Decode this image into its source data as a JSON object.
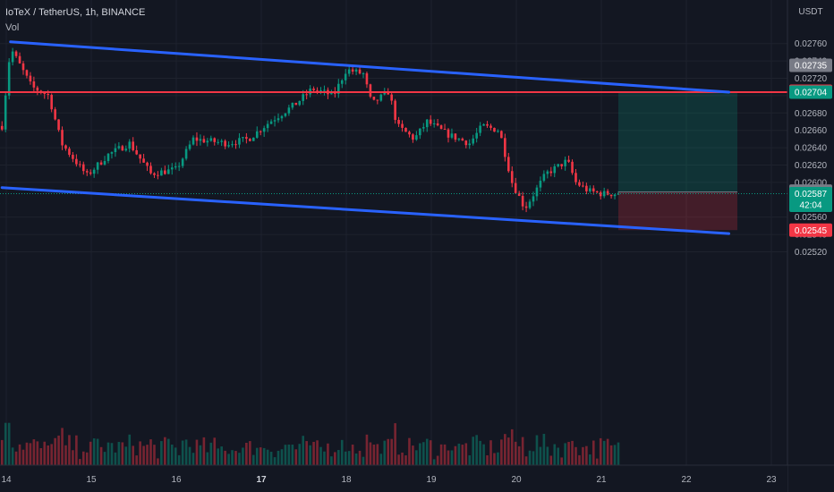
{
  "header": {
    "symbol_title": "IoTeX / TetherUS, 1h, BINANCE",
    "volume_label": "Vol"
  },
  "price_axis": {
    "currency": "USDT",
    "ticks": [
      "0.02760",
      "0.02740",
      "0.02720",
      "0.02700",
      "0.02680",
      "0.02660",
      "0.02640",
      "0.02620",
      "0.02600",
      "0.02560",
      "0.02540",
      "0.02520"
    ],
    "badges": [
      {
        "value": "0.02735",
        "color": "#787b86"
      },
      {
        "value": "0.02705",
        "color": "#f23645"
      },
      {
        "value": "0.02704",
        "color": "#089981"
      },
      {
        "value": "0.02590",
        "color": "#787b86"
      },
      {
        "value": "0.02587",
        "color": "#089981",
        "countdown": "42:04"
      },
      {
        "value": "0.02545",
        "color": "#f23645"
      }
    ]
  },
  "time_axis": {
    "ticks": [
      "14",
      "15",
      "16",
      "17",
      "18",
      "19",
      "20",
      "21",
      "22",
      "23"
    ],
    "bold": [
      "17"
    ]
  },
  "chart_data": {
    "type": "candlestick",
    "title": "IoTeX / TetherUS, 1h, BINANCE",
    "x": [
      "14",
      "15",
      "16",
      "17",
      "18",
      "19",
      "20",
      "21",
      "22",
      "23"
    ],
    "ylim": [
      0.02515,
      0.02775
    ],
    "colors": {
      "up": "#089981",
      "down": "#f23645",
      "channel": "#2962ff",
      "resistance": "#f23645"
    },
    "price_path": [
      [
        13.95,
        0.02665
      ],
      [
        14.05,
        0.02755
      ],
      [
        14.3,
        0.0271
      ],
      [
        14.5,
        0.027
      ],
      [
        14.65,
        0.02645
      ],
      [
        14.85,
        0.0262
      ],
      [
        14.95,
        0.02608
      ],
      [
        15.2,
        0.02632
      ],
      [
        15.45,
        0.02645
      ],
      [
        15.7,
        0.0261
      ],
      [
        16.0,
        0.02615
      ],
      [
        16.2,
        0.0265
      ],
      [
        16.6,
        0.02645
      ],
      [
        16.85,
        0.0265
      ],
      [
        17.1,
        0.0267
      ],
      [
        17.4,
        0.0269
      ],
      [
        17.6,
        0.02708
      ],
      [
        17.85,
        0.027
      ],
      [
        18.0,
        0.0273
      ],
      [
        18.2,
        0.02725
      ],
      [
        18.3,
        0.0269
      ],
      [
        18.5,
        0.02705
      ],
      [
        18.6,
        0.02665
      ],
      [
        18.8,
        0.0265
      ],
      [
        18.95,
        0.0267
      ],
      [
        19.2,
        0.02655
      ],
      [
        19.45,
        0.02645
      ],
      [
        19.6,
        0.02665
      ],
      [
        19.8,
        0.0266
      ],
      [
        19.95,
        0.026
      ],
      [
        20.1,
        0.0257
      ],
      [
        20.35,
        0.0261
      ],
      [
        20.6,
        0.02625
      ],
      [
        20.7,
        0.026
      ],
      [
        20.85,
        0.0259
      ],
      [
        21.0,
        0.02587
      ],
      [
        21.2,
        0.02587
      ]
    ],
    "channel_upper": {
      "from": [
        14.05,
        0.02762
      ],
      "to": [
        22.5,
        0.02704
      ]
    },
    "channel_lower": {
      "from": [
        13.95,
        0.02594
      ],
      "to": [
        22.5,
        0.02541
      ]
    },
    "resistance_level": 0.02704,
    "long_position": {
      "entry": 0.02589,
      "target": 0.02704,
      "stop": 0.02545,
      "from": 21.2,
      "to": 22.6
    },
    "last_price": 0.02587
  }
}
